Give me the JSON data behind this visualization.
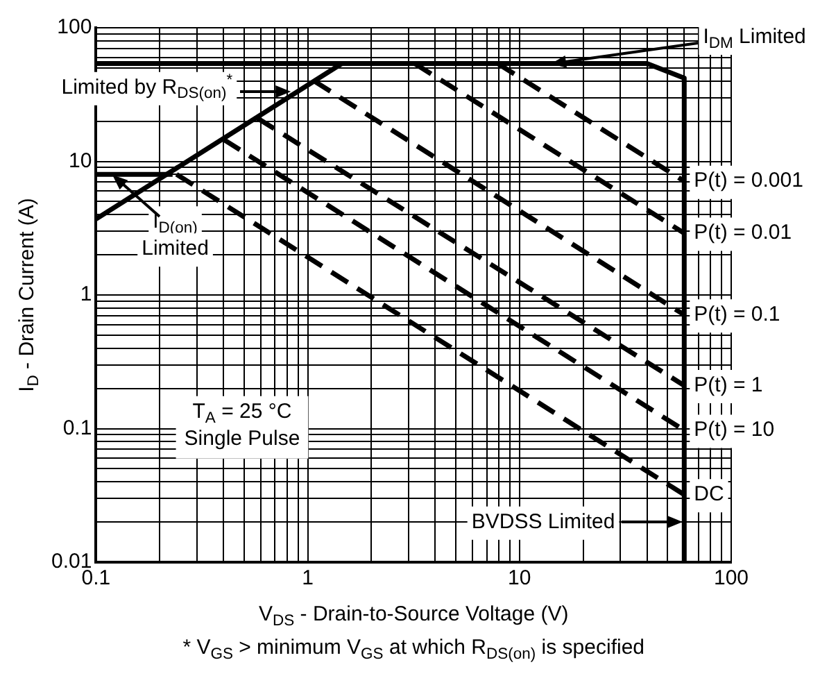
{
  "chart_data": {
    "type": "line",
    "xlabel": "V$_{DS}$ - Drain-to-Source Voltage (V)",
    "ylabel": "I$_{D}$ - Drain Current (A)",
    "log": "xy",
    "grid": true,
    "marker": "none",
    "xlim": [
      0.1,
      100
    ],
    "ylim": [
      0.01,
      100
    ],
    "xticks": [
      0.1,
      {
        "value": 0.2,
        "label": null
      },
      {
        "value": 0.3,
        "label": null
      },
      {
        "value": 0.4,
        "label": null
      },
      {
        "value": 0.5,
        "label": null
      },
      {
        "value": 0.6,
        "label": null
      },
      {
        "value": 0.7,
        "label": null
      },
      {
        "value": 0.8,
        "label": null
      },
      {
        "value": 0.9,
        "label": null
      },
      1,
      {
        "value": 2,
        "label": null
      },
      {
        "value": 3,
        "label": null
      },
      {
        "value": 4,
        "label": null
      },
      {
        "value": 5,
        "label": null
      },
      {
        "value": 6,
        "label": null
      },
      {
        "value": 7,
        "label": null
      },
      {
        "value": 8,
        "label": null
      },
      {
        "value": 9,
        "label": null
      },
      10,
      {
        "value": 20,
        "label": null
      },
      {
        "value": 30,
        "label": null
      },
      {
        "value": 40,
        "label": null
      },
      {
        "value": 50,
        "label": null
      },
      {
        "value": 60,
        "label": null
      },
      {
        "value": 70,
        "label": null
      },
      {
        "value": 80,
        "label": null
      },
      {
        "value": 90,
        "label": null
      },
      100
    ],
    "yticks": [
      0.01,
      {
        "value": 0.02,
        "label": null
      },
      {
        "value": 0.03,
        "label": null
      },
      {
        "value": 0.04,
        "label": null
      },
      {
        "value": 0.05,
        "label": null
      },
      {
        "value": 0.06,
        "label": null
      },
      {
        "value": 0.07,
        "label": null
      },
      {
        "value": 0.08,
        "label": null
      },
      {
        "value": 0.09,
        "label": null
      },
      0.1,
      {
        "value": 0.2,
        "label": null
      },
      {
        "value": 0.3,
        "label": null
      },
      {
        "value": 0.4,
        "label": null
      },
      {
        "value": 0.5,
        "label": null
      },
      {
        "value": 0.6,
        "label": null
      },
      {
        "value": 0.7,
        "label": null
      },
      {
        "value": 0.8,
        "label": null
      },
      {
        "value": 0.9,
        "label": null
      },
      1,
      {
        "value": 2,
        "label": null
      },
      {
        "value": 3,
        "label": null
      },
      {
        "value": 4,
        "label": null
      },
      {
        "value": 5,
        "label": null
      },
      {
        "value": 6,
        "label": null
      },
      {
        "value": 7,
        "label": null
      },
      {
        "value": 8,
        "label": null
      },
      {
        "value": 9,
        "label": null
      },
      10,
      {
        "value": 20,
        "label": null
      },
      {
        "value": 30,
        "label": null
      },
      {
        "value": 40,
        "label": null
      },
      {
        "value": 50,
        "label": null
      },
      {
        "value": 60,
        "label": null
      },
      {
        "value": 70,
        "label": null
      },
      {
        "value": 80,
        "label": null
      },
      {
        "value": 90,
        "label": null
      },
      100
    ],
    "series": [
      {
        "color": "#000000",
        "line_style": "solid",
        "x": [
          0.1,
          40,
          60,
          60
        ],
        "values": [
          54,
          54,
          42,
          0.01
        ]
      },
      {
        "color": "#000000",
        "line_style": "solid",
        "x": [
          0.1,
          1.45
        ],
        "values": [
          3.7,
          54
        ]
      },
      {
        "color": "#000000",
        "line_style": "solid",
        "x": [
          0.1,
          0.23
        ],
        "values": [
          8,
          8
        ]
      },
      {
        "name": "P(t) = 0.001",
        "color": "#000000",
        "line_style": "dashed",
        "x": [
          7.9,
          60
        ],
        "values": [
          54,
          7.1
        ]
      },
      {
        "name": "P(t) = 0.01",
        "color": "#000000",
        "line_style": "dashed",
        "x": [
          3.2,
          60
        ],
        "values": [
          54,
          2.9
        ]
      },
      {
        "name": "P(t) = 0.1",
        "color": "#000000",
        "line_style": "dashed",
        "x": [
          1.07,
          60
        ],
        "values": [
          40,
          0.71
        ]
      },
      {
        "name": "P(t) = 1",
        "color": "#000000",
        "line_style": "dashed",
        "x": [
          0.58,
          60
        ],
        "values": [
          21,
          0.21
        ]
      },
      {
        "name": "P(t) = 10",
        "color": "#000000",
        "line_style": "dashed",
        "x": [
          0.4,
          60
        ],
        "values": [
          14.6,
          0.097
        ]
      },
      {
        "name": "DC",
        "color": "#000000",
        "line_style": "dashed",
        "x": [
          0.24,
          60
        ],
        "values": [
          8,
          0.032
        ]
      }
    ],
    "annotations": [
      {
        "text": "I$_{DM}$ Limited",
        "x": 14,
        "y": 54
      },
      "Limited by R$_{DS(on)}$$^{*}$",
      {
        "text": "I$_{D(on)}$ Limited",
        "x": 0.12,
        "y": 8
      },
      "BVDSS Limited",
      "T$_{A}$ = 25 °C Single Pulse",
      "* V$_{GS}$ > minimum V$_{GS}$ at which R$_{DS(on)}$ is specified"
    ]
  }
}
